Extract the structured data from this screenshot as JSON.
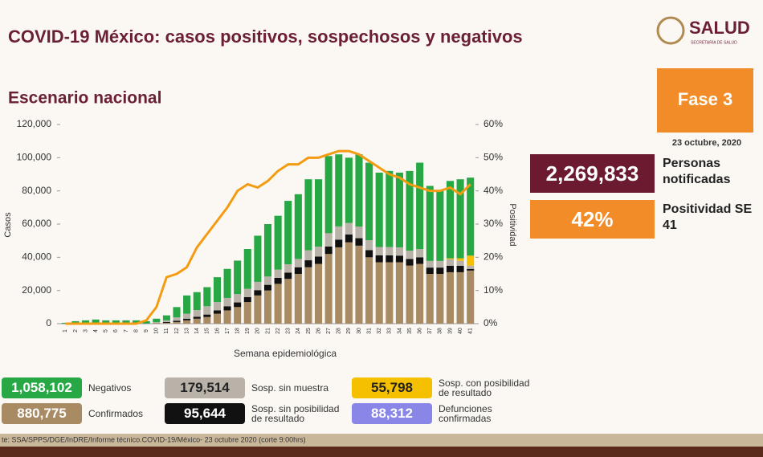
{
  "header": {
    "title": "COVID-19 México: casos positivos, sospechosos y negativos",
    "logo": "SALUD",
    "logo_sub": "SECRETARÍA DE SALUD"
  },
  "phase": {
    "label": "Fase 3",
    "date": "23 octubre, 2020"
  },
  "stats": [
    {
      "value": "2,269,833",
      "label": "Personas notificadas",
      "color": "#6b1a30"
    },
    {
      "value": "42%",
      "label": "Positividad SE 41",
      "color": "#f28c28"
    }
  ],
  "extra_legend": {
    "name": "Defunciones confirmadas",
    "total": "88,312",
    "color": "#8a86e8"
  },
  "source": "te: SSA/SPPS/DGE/InDRE/Informe técnico.COVID-19/México- 23 octubre 2020 (corte 9:00hrs)",
  "chart_data": {
    "type": "bar",
    "stacked": true,
    "title": "Escenario nacional",
    "xlabel": "Semana epidemiológica",
    "ylabel": "Casos",
    "y2label": "Positividad",
    "categories": [
      "1",
      "2",
      "3",
      "4",
      "5",
      "6",
      "7",
      "8",
      "9",
      "10",
      "11",
      "12",
      "13",
      "14",
      "15",
      "16",
      "17",
      "18",
      "19",
      "20",
      "21",
      "22",
      "23",
      "24",
      "25",
      "26",
      "27",
      "28",
      "29",
      "30",
      "31",
      "32",
      "33",
      "34",
      "35",
      "36",
      "37",
      "38",
      "39",
      "40",
      "41"
    ],
    "series": [
      {
        "name": "Confirmados",
        "total": "880,775",
        "color": "#a88a63",
        "values": [
          0,
          100,
          100,
          200,
          100,
          100,
          100,
          100,
          100,
          300,
          500,
          1000,
          2000,
          3000,
          4000,
          6000,
          8000,
          10000,
          13000,
          17000,
          20000,
          24000,
          27000,
          30000,
          34000,
          36000,
          42000,
          46000,
          49000,
          47000,
          40000,
          37000,
          37000,
          37000,
          35000,
          36000,
          30000,
          30000,
          31000,
          31000,
          32000
        ]
      },
      {
        "name": "Sosp. sin posibilidad de resultado",
        "total": "95,644",
        "color": "#111111",
        "values": [
          0,
          0,
          0,
          0,
          0,
          0,
          0,
          0,
          0,
          100,
          500,
          800,
          1000,
          1200,
          1500,
          2000,
          2500,
          2800,
          3000,
          3200,
          3400,
          3600,
          3800,
          4000,
          4200,
          4400,
          4500,
          4600,
          4700,
          4500,
          4300,
          4200,
          4200,
          4000,
          4000,
          4000,
          3800,
          3800,
          3900,
          3900,
          1000
        ]
      },
      {
        "name": "Sosp. sin muestra",
        "total": "179,514",
        "color": "#b8b2a8",
        "values": [
          0,
          0,
          0,
          0,
          0,
          0,
          0,
          0,
          0,
          500,
          1000,
          2000,
          3000,
          4000,
          5000,
          5000,
          5000,
          5000,
          5000,
          5000,
          5000,
          5000,
          5000,
          5000,
          6000,
          6000,
          8000,
          8000,
          7000,
          7000,
          6000,
          5000,
          5000,
          5000,
          5000,
          5000,
          4000,
          4000,
          4000,
          3000,
          2000
        ]
      },
      {
        "name": "Sosp. con posibilidad de resultado",
        "total": "55,798",
        "color": "#f5c000",
        "values": [
          0,
          0,
          0,
          0,
          0,
          0,
          0,
          0,
          0,
          0,
          0,
          0,
          0,
          0,
          0,
          0,
          0,
          0,
          0,
          0,
          0,
          0,
          0,
          0,
          0,
          0,
          0,
          0,
          0,
          0,
          0,
          0,
          0,
          0,
          0,
          0,
          0,
          0,
          500,
          1500,
          6000
        ]
      },
      {
        "name": "Negativos",
        "total": "1,058,102",
        "color": "#27a844",
        "values": [
          500,
          1400,
          1900,
          2300,
          1900,
          1900,
          1900,
          1900,
          1400,
          2100,
          3000,
          6200,
          11000,
          10800,
          11500,
          15000,
          17500,
          20200,
          24000,
          27800,
          31600,
          32400,
          38200,
          39000,
          42800,
          40600,
          46500,
          43400,
          39300,
          43500,
          46700,
          44800,
          45800,
          45000,
          48000,
          52000,
          45200,
          42200,
          46600,
          47600,
          47000
        ]
      },
      {
        "type": "line",
        "axis": "y2",
        "color": "#f39c12",
        "values": [
          0,
          0,
          0,
          0,
          0,
          0,
          0,
          0,
          1,
          5,
          14,
          15,
          17,
          23,
          27,
          31,
          35,
          40,
          42,
          41,
          43,
          46,
          48,
          48,
          50,
          50,
          51,
          52,
          52,
          51,
          49,
          47,
          45,
          44,
          42,
          41,
          40,
          40,
          41,
          39,
          42
        ]
      }
    ],
    "ylim": [
      0,
      120000
    ],
    "yticks": [
      {
        "value": 0,
        "label": "0"
      },
      {
        "value": 20000,
        "label": "20,000"
      },
      {
        "value": 40000,
        "label": "40,000"
      },
      {
        "value": 60000,
        "label": "60,000"
      },
      {
        "value": 80000,
        "label": "80,000"
      },
      {
        "value": 100000,
        "label": "100,000"
      },
      {
        "value": 120000,
        "label": "120,000"
      }
    ],
    "y2lim": [
      0,
      60
    ],
    "y2ticks": [
      {
        "value": 0,
        "label": "0%"
      },
      {
        "value": 10,
        "label": "10%"
      },
      {
        "value": 20,
        "label": "20%"
      },
      {
        "value": 30,
        "label": "30%"
      },
      {
        "value": 40,
        "label": "40%"
      },
      {
        "value": 50,
        "label": "50%"
      },
      {
        "value": 60,
        "label": "60%"
      }
    ]
  }
}
